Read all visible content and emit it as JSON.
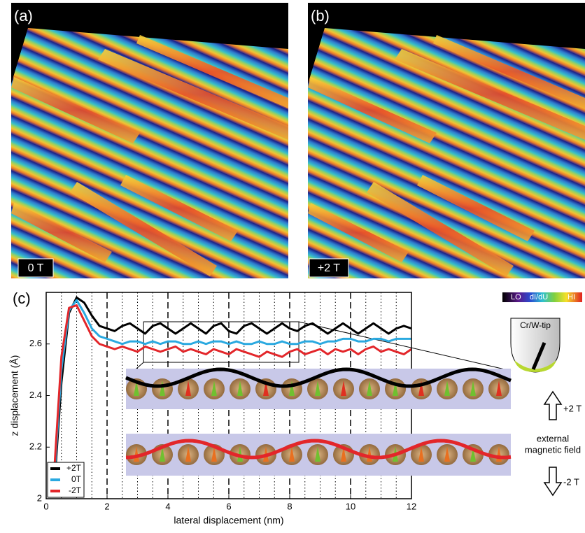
{
  "panels": {
    "a": {
      "letter": "(a)",
      "field": "0 T"
    },
    "b": {
      "letter": "(b)",
      "field": "+2 T"
    },
    "c": {
      "letter": "(c)"
    }
  },
  "colorbar": {
    "lo": "LO",
    "label": "dI/dU",
    "hi": "HI"
  },
  "tip": "Cr/W-tip",
  "field_up": "+2 T",
  "field_caption": [
    "external",
    "magnetic field"
  ],
  "field_down": "-2 T",
  "chart_data": {
    "type": "line",
    "x_label": "lateral displacement (nm)",
    "y_label": "z displacement (Å)",
    "xlim": [
      0,
      12
    ],
    "ylim": [
      2,
      2.8
    ],
    "xticks": [
      0,
      2,
      4,
      6,
      8,
      10,
      12
    ],
    "yticks": [
      2,
      2.2,
      2.4,
      2.6
    ],
    "xminor": [
      0.5,
      1,
      1.5,
      2.5,
      3,
      3.5,
      4.5,
      5,
      5.5,
      6.5,
      7,
      7.5,
      8.5,
      9,
      9.5,
      10.5,
      11,
      11.5
    ],
    "grid": true,
    "legend": "lower left",
    "x": [
      0.25,
      0.5,
      0.75,
      1,
      1.25,
      1.5,
      1.75,
      2,
      2.25,
      2.5,
      2.75,
      3,
      3.25,
      3.5,
      3.75,
      4,
      4.25,
      4.5,
      4.75,
      5,
      5.25,
      5.5,
      5.75,
      6,
      6.25,
      6.5,
      6.75,
      7,
      7.25,
      7.5,
      7.75,
      8,
      8.25,
      8.5,
      8.75,
      9,
      9.25,
      9.5,
      9.75,
      10,
      10.25,
      10.5,
      10.75,
      11,
      11.25,
      11.5,
      11.75,
      12
    ],
    "series": [
      {
        "name": "+2T",
        "color": "#000000",
        "values": [
          2.02,
          2.45,
          2.72,
          2.78,
          2.76,
          2.71,
          2.67,
          2.66,
          2.65,
          2.67,
          2.68,
          2.66,
          2.64,
          2.67,
          2.68,
          2.66,
          2.64,
          2.66,
          2.68,
          2.66,
          2.64,
          2.67,
          2.68,
          2.65,
          2.64,
          2.67,
          2.68,
          2.66,
          2.64,
          2.66,
          2.68,
          2.66,
          2.65,
          2.67,
          2.68,
          2.66,
          2.64,
          2.66,
          2.68,
          2.66,
          2.64,
          2.66,
          2.68,
          2.66,
          2.64,
          2.66,
          2.67,
          2.66
        ]
      },
      {
        "name": "0T",
        "color": "#2aa9e0",
        "values": [
          2.05,
          2.5,
          2.73,
          2.77,
          2.72,
          2.66,
          2.63,
          2.62,
          2.61,
          2.6,
          2.61,
          2.61,
          2.6,
          2.61,
          2.6,
          2.61,
          2.61,
          2.6,
          2.6,
          2.61,
          2.6,
          2.61,
          2.61,
          2.6,
          2.61,
          2.6,
          2.6,
          2.61,
          2.6,
          2.6,
          2.61,
          2.6,
          2.6,
          2.61,
          2.61,
          2.6,
          2.61,
          2.61,
          2.62,
          2.62,
          2.61,
          2.61,
          2.62,
          2.62,
          2.61,
          2.62,
          2.62,
          2.62
        ]
      },
      {
        "name": "-2T",
        "color": "#e3262a",
        "values": [
          2.08,
          2.55,
          2.74,
          2.75,
          2.69,
          2.63,
          2.6,
          2.59,
          2.58,
          2.59,
          2.58,
          2.57,
          2.59,
          2.58,
          2.57,
          2.58,
          2.59,
          2.57,
          2.58,
          2.57,
          2.56,
          2.58,
          2.57,
          2.56,
          2.58,
          2.57,
          2.56,
          2.55,
          2.57,
          2.56,
          2.55,
          2.57,
          2.58,
          2.56,
          2.57,
          2.58,
          2.56,
          2.58,
          2.57,
          2.58,
          2.56,
          2.58,
          2.59,
          2.57,
          2.58,
          2.57,
          2.56,
          2.58
        ]
      }
    ]
  }
}
